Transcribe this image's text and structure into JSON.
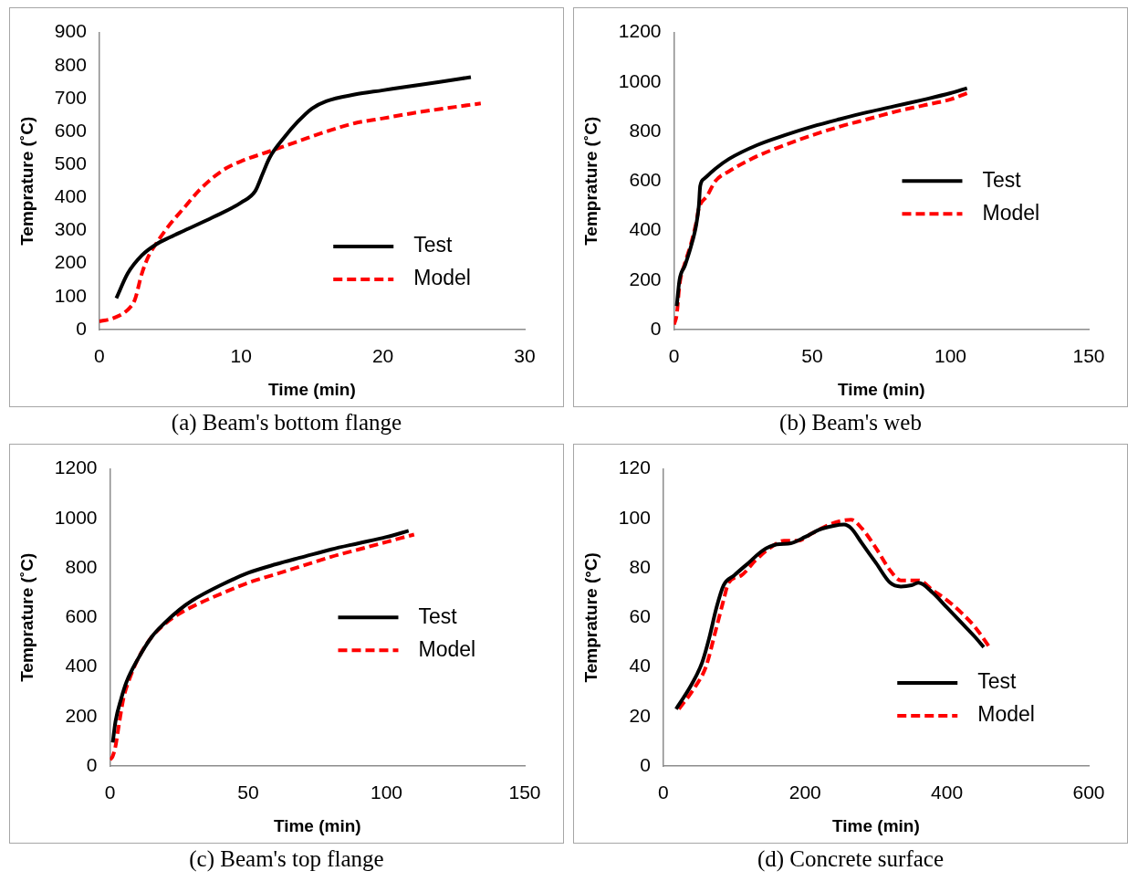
{
  "chart_data": [
    {
      "type": "line",
      "title": "(a) Beam's bottom flange",
      "xlabel": "Time (min)",
      "ylabel": "Temprature (˚C)",
      "xlim": [
        0,
        30
      ],
      "xticks": [
        0,
        10,
        20,
        30
      ],
      "ylim": [
        0,
        900
      ],
      "yticks": [
        0,
        100,
        200,
        300,
        400,
        500,
        600,
        700,
        800,
        900
      ],
      "legend": "bottom right",
      "series": [
        {
          "name": "Test",
          "color": "#000000",
          "line_style": "solid",
          "x": [
            1.2,
            2,
            3,
            4,
            5,
            6,
            8,
            10,
            11,
            11.5,
            12,
            13,
            14,
            15,
            16,
            18,
            20,
            22,
            24,
            26.2
          ],
          "values": [
            95,
            170,
            225,
            258,
            280,
            300,
            340,
            385,
            420,
            470,
            520,
            580,
            630,
            670,
            692,
            712,
            725,
            738,
            750,
            765
          ]
        },
        {
          "name": "Model",
          "color": "#ff0000",
          "line_style": "dashed",
          "x": [
            0,
            1,
            2,
            2.5,
            3,
            3.5,
            4,
            5,
            6,
            7,
            8,
            9,
            10,
            12,
            14,
            16,
            18,
            20,
            22,
            24,
            26.9
          ],
          "values": [
            25,
            35,
            60,
            90,
            170,
            225,
            260,
            320,
            370,
            420,
            460,
            490,
            510,
            540,
            570,
            600,
            625,
            640,
            655,
            668,
            685
          ]
        }
      ]
    },
    {
      "type": "line",
      "title": "(b) Beam's web",
      "xlabel": "Time (min)",
      "ylabel": "Temprature (˚C)",
      "xlim": [
        0,
        150
      ],
      "xticks": [
        0,
        50,
        100,
        150
      ],
      "ylim": [
        0,
        1200
      ],
      "yticks": [
        0,
        200,
        400,
        600,
        800,
        1000,
        1200
      ],
      "legend": "right",
      "series": [
        {
          "name": "Test",
          "color": "#000000",
          "line_style": "solid",
          "x": [
            1,
            2,
            4,
            6,
            8,
            9,
            9.5,
            11,
            15,
            20,
            30,
            40,
            50,
            60,
            70,
            80,
            90,
            100,
            106
          ],
          "values": [
            95,
            200,
            260,
            330,
            420,
            500,
            580,
            610,
            650,
            690,
            745,
            785,
            820,
            850,
            878,
            903,
            928,
            955,
            975
          ]
        },
        {
          "name": "Model",
          "color": "#ff0000",
          "line_style": "dashed",
          "x": [
            0,
            1,
            2,
            4,
            6,
            8,
            9,
            12,
            15,
            20,
            30,
            40,
            50,
            60,
            70,
            80,
            90,
            100,
            106
          ],
          "values": [
            20,
            60,
            180,
            270,
            340,
            430,
            490,
            540,
            600,
            640,
            700,
            745,
            785,
            820,
            850,
            880,
            905,
            930,
            955
          ]
        }
      ]
    },
    {
      "type": "line",
      "title": "(c) Beam's top flange",
      "xlabel": "Time (min)",
      "ylabel": "Temprature (˚C)",
      "xlim": [
        0,
        150
      ],
      "xticks": [
        0,
        50,
        100,
        150
      ],
      "ylim": [
        0,
        1200
      ],
      "yticks": [
        0,
        200,
        400,
        600,
        800,
        1000,
        1200
      ],
      "legend": "right",
      "series": [
        {
          "name": "Test",
          "color": "#000000",
          "line_style": "solid",
          "x": [
            1,
            2,
            4,
            6,
            10,
            15,
            20,
            25,
            30,
            40,
            50,
            60,
            70,
            80,
            90,
            100,
            108
          ],
          "values": [
            95,
            180,
            270,
            340,
            430,
            520,
            580,
            630,
            670,
            730,
            780,
            815,
            845,
            875,
            900,
            925,
            950
          ]
        },
        {
          "name": "Model",
          "color": "#ff0000",
          "line_style": "dashed",
          "x": [
            0,
            1,
            2,
            3,
            5,
            7,
            10,
            15,
            20,
            25,
            30,
            40,
            50,
            60,
            70,
            80,
            90,
            100,
            110
          ],
          "values": [
            25,
            40,
            80,
            150,
            280,
            350,
            430,
            520,
            575,
            615,
            645,
            695,
            740,
            775,
            810,
            845,
            875,
            905,
            935
          ]
        }
      ]
    },
    {
      "type": "line",
      "title": "(d) Concrete surface",
      "xlabel": "Time (min)",
      "ylabel": "Temprature (°C)",
      "xlim": [
        0,
        600
      ],
      "xticks": [
        0,
        200,
        400,
        600
      ],
      "ylim": [
        0,
        120
      ],
      "yticks": [
        0,
        20,
        40,
        60,
        80,
        100,
        120
      ],
      "legend": "bottom right",
      "series": [
        {
          "name": "Test",
          "color": "#000000",
          "line_style": "solid",
          "x": [
            18,
            40,
            55,
            65,
            75,
            85,
            100,
            120,
            140,
            160,
            180,
            200,
            220,
            240,
            255,
            265,
            280,
            300,
            320,
            335,
            350,
            360,
            380,
            400,
            420,
            440,
            452
          ],
          "values": [
            23,
            33,
            42,
            52,
            64,
            73,
            77,
            82,
            87,
            89.5,
            90,
            92.5,
            95.5,
            97,
            97.5,
            96,
            90,
            82,
            74,
            72.5,
            73,
            74,
            70,
            64,
            58,
            52,
            48
          ]
        },
        {
          "name": "Model",
          "color": "#ff0000",
          "line_style": "dashed",
          "x": [
            22,
            45,
            60,
            75,
            85,
            92,
            110,
            130,
            150,
            170,
            190,
            210,
            230,
            250,
            265,
            280,
            300,
            320,
            335,
            345,
            360,
            380,
            400,
            420,
            440,
            460
          ],
          "values": [
            23,
            32,
            40,
            56,
            67,
            74,
            77,
            83,
            88,
            91,
            91,
            94,
            97,
            99,
            99.5,
            96,
            88,
            79,
            75,
            75,
            75,
            71,
            67,
            62,
            56,
            48
          ]
        }
      ]
    }
  ]
}
